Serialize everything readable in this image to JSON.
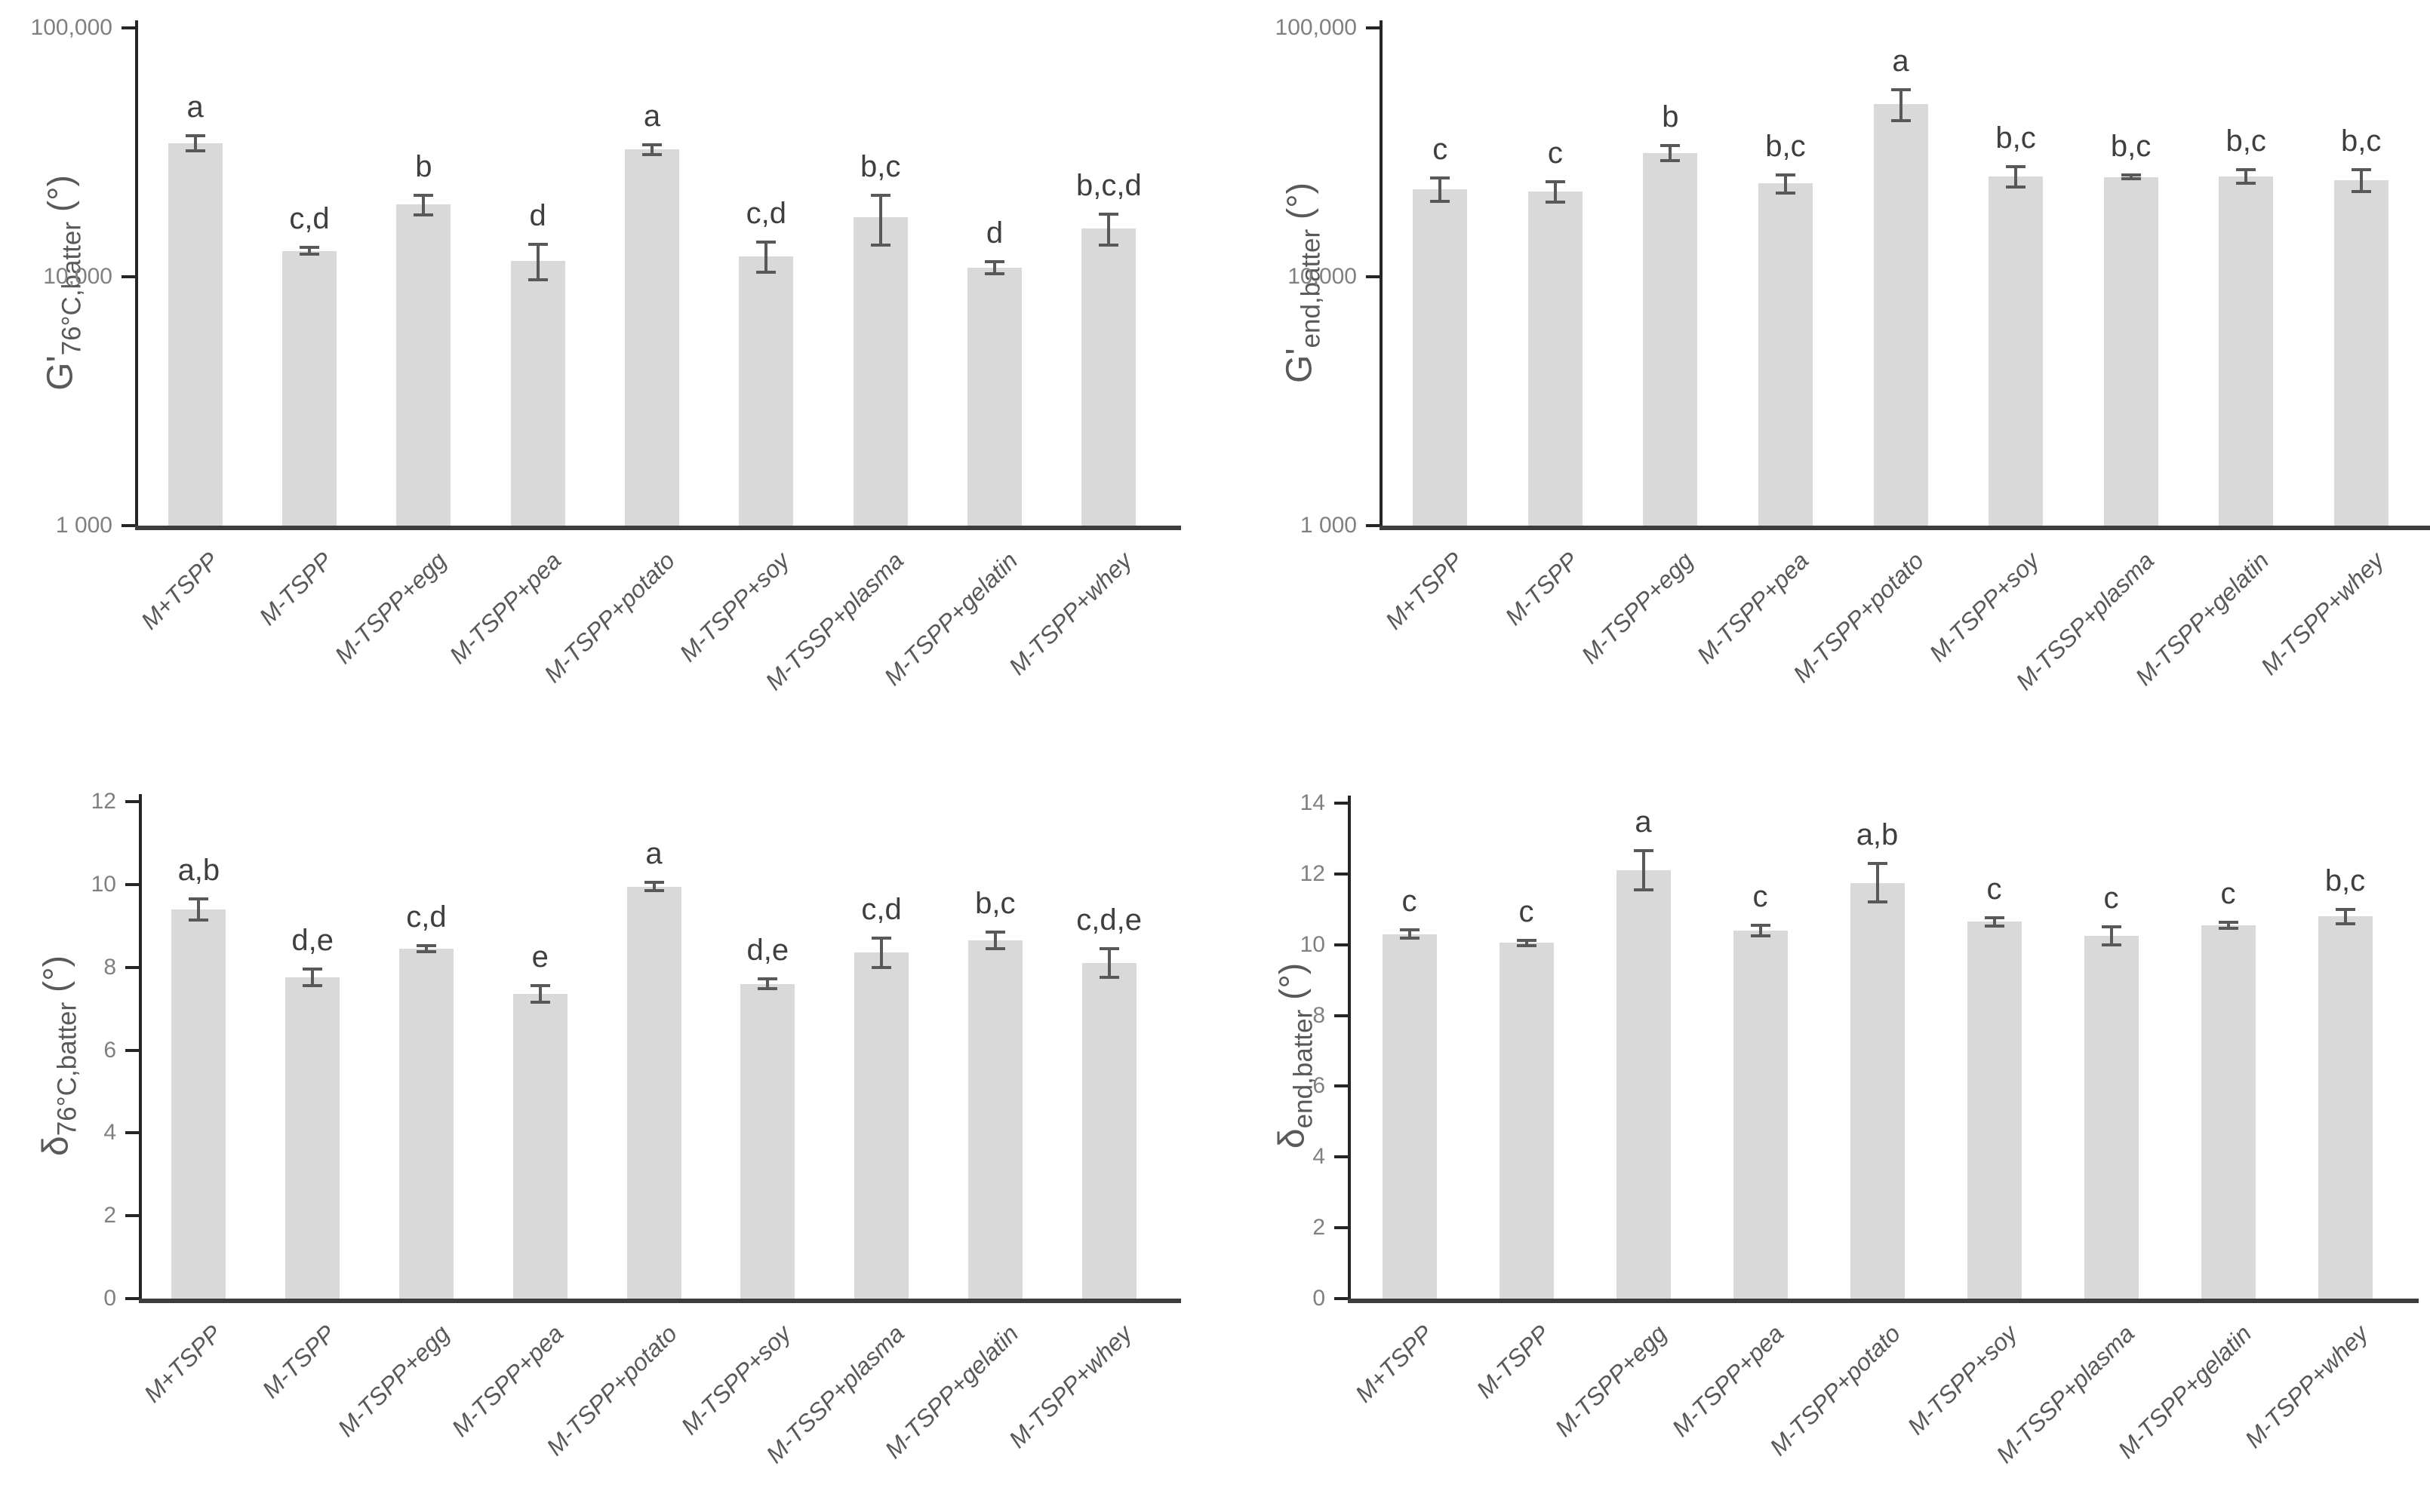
{
  "figure": {
    "background": "#ffffff",
    "description": "Four-panel bar chart of batter rheology: storage modulus G' at 76°C and at end of heating (log scale), and phase angle delta at 76°C and at end of heating (linear scale), for nine formulations with error bars and significance letters"
  },
  "colors": {
    "bar_fill": "#d9d9d9",
    "error_bar": "#595959",
    "axis_line": "#262626",
    "baseline": "#3d3d3d",
    "tick_label": "#808080",
    "significance_letter": "#3f3f3f",
    "category_label": "#595959",
    "y_axis_title": "#595959"
  },
  "chart_data": [
    {
      "panel_id": "panel-g-prime-76C-batter",
      "position": "top-left",
      "type": "bar",
      "yscale": "log",
      "ylabel": {
        "main": "G'",
        "sub": "76°C,batter",
        "unit": " (°)"
      },
      "ylim": [
        1000,
        100000
      ],
      "yticks": [
        {
          "value": 1000,
          "label": "1 000"
        },
        {
          "value": 10000,
          "label": "10,000"
        },
        {
          "value": 100000,
          "label": "100,000"
        }
      ],
      "categories": [
        "M+TSPP",
        "M-TSPP",
        "M-TSPP+egg",
        "M-TSPP+pea",
        "M-TSPP+potato",
        "M-TSPP+soy",
        "M-TSSP+plasma",
        "M-TSPP+gelatin",
        "M-TSPP+whey"
      ],
      "values": [
        34500,
        12700,
        19500,
        11600,
        32500,
        12100,
        17300,
        10900,
        15600
      ],
      "errors": [
        2400,
        400,
        1800,
        1900,
        1500,
        1700,
        3900,
        600,
        2200
      ],
      "letters": [
        "a",
        "c,d",
        "b",
        "d",
        "a",
        "c,d",
        "b,c",
        "d",
        "b,c,d"
      ],
      "grid": false,
      "legend": null
    },
    {
      "panel_id": "panel-g-prime-end-batter",
      "position": "top-right",
      "type": "bar",
      "yscale": "log",
      "ylabel": {
        "main": "G'",
        "sub": "end,batter",
        "unit": " (°)"
      },
      "ylim": [
        1000,
        100000
      ],
      "yticks": [
        {
          "value": 1000,
          "label": "1 000"
        },
        {
          "value": 10000,
          "label": "10,000"
        },
        {
          "value": 100000,
          "label": "100,000"
        }
      ],
      "categories": [
        "M+TSPP",
        "M-TSPP",
        "M-TSPP+egg",
        "M-TSPP+pea",
        "M-TSPP+potato",
        "M-TSPP+soy",
        "M-TSSP+plasma",
        "M-TSPP+gelatin",
        "M-TSPP+whey"
      ],
      "values": [
        22500,
        22000,
        31400,
        23700,
        49300,
        25300,
        25200,
        25300,
        24500
      ],
      "errors": [
        2400,
        2100,
        2200,
        2000,
        7000,
        2400,
        500,
        1600,
        2500
      ],
      "letters": [
        "c",
        "c",
        "b",
        "b,c",
        "a",
        "b,c",
        "b,c",
        "b,c",
        "b,c"
      ],
      "grid": false,
      "legend": null
    },
    {
      "panel_id": "panel-delta-76C-batter",
      "position": "bottom-left",
      "type": "bar",
      "yscale": "linear",
      "ylabel": {
        "main": "δ",
        "sub": "76°C,batter",
        "unit": " (°)"
      },
      "ylim": [
        0,
        12
      ],
      "yticks": [
        {
          "value": 0,
          "label": "0"
        },
        {
          "value": 2,
          "label": "2"
        },
        {
          "value": 4,
          "label": "4"
        },
        {
          "value": 6,
          "label": "6"
        },
        {
          "value": 8,
          "label": "8"
        },
        {
          "value": 10,
          "label": "10"
        },
        {
          "value": 12,
          "label": "12"
        }
      ],
      "categories": [
        "M+TSPP",
        "M-TSPP",
        "M-TSPP+egg",
        "M-TSPP+pea",
        "M-TSPP+potato",
        "M-TSPP+soy",
        "M-TSSP+plasma",
        "M-TSPP+gelatin",
        "M-TSPP+whey"
      ],
      "values": [
        9.4,
        7.75,
        8.45,
        7.35,
        9.95,
        7.6,
        8.35,
        8.65,
        8.1
      ],
      "errors": [
        0.25,
        0.2,
        0.07,
        0.2,
        0.1,
        0.12,
        0.35,
        0.2,
        0.35
      ],
      "letters": [
        "a,b",
        "d,e",
        "c,d",
        "e",
        "a",
        "d,e",
        "c,d",
        "b,c",
        "c,d,e"
      ],
      "grid": false,
      "legend": null
    },
    {
      "panel_id": "panel-delta-end-batter",
      "position": "bottom-right",
      "type": "bar",
      "yscale": "linear",
      "ylabel": {
        "main": "δ",
        "sub": "end,batter",
        "unit": " (°)"
      },
      "ylim": [
        0,
        14
      ],
      "yticks": [
        {
          "value": 0,
          "label": "0"
        },
        {
          "value": 2,
          "label": "2"
        },
        {
          "value": 4,
          "label": "4"
        },
        {
          "value": 6,
          "label": "6"
        },
        {
          "value": 8,
          "label": "8"
        },
        {
          "value": 10,
          "label": "10"
        },
        {
          "value": 12,
          "label": "12"
        },
        {
          "value": 14,
          "label": "14"
        }
      ],
      "categories": [
        "M+TSPP",
        "M-TSPP",
        "M-TSPP+egg",
        "M-TSPP+pea",
        "M-TSPP+potato",
        "M-TSPP+soy",
        "M-TSSP+plasma",
        "M-TSPP+gelatin",
        "M-TSPP+whey"
      ],
      "values": [
        10.3,
        10.05,
        12.1,
        10.4,
        11.75,
        10.65,
        10.25,
        10.55,
        10.8
      ],
      "errors": [
        0.12,
        0.07,
        0.55,
        0.15,
        0.55,
        0.12,
        0.25,
        0.08,
        0.2
      ],
      "letters": [
        "c",
        "c",
        "a",
        "c",
        "a,b",
        "c",
        "c",
        "c",
        "b,c"
      ],
      "grid": false,
      "legend": null
    }
  ]
}
